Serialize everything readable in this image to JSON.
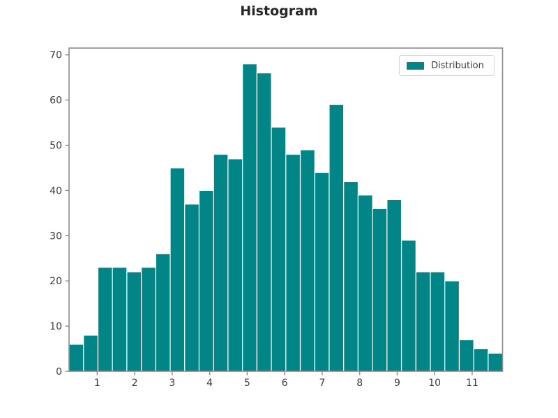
{
  "chart": {
    "title": "Histogram",
    "legend_label": "Distribution"
  },
  "chart_data": {
    "type": "bar",
    "subtype": "histogram",
    "title": "Histogram",
    "legend": [
      {
        "label": "Distribution",
        "color": "#028586"
      }
    ],
    "legend_position": "upper right",
    "bin_start": 0.25,
    "bin_width": 0.3854,
    "counts": [
      6,
      8,
      23,
      23,
      22,
      23,
      26,
      45,
      37,
      40,
      48,
      47,
      68,
      66,
      54,
      48,
      49,
      44,
      59,
      42,
      39,
      36,
      38,
      29,
      22,
      22,
      20,
      7,
      5,
      4
    ],
    "total_samples": 1000,
    "xticks": [
      1,
      2,
      3,
      4,
      5,
      6,
      7,
      8,
      9,
      10,
      11
    ],
    "yticks": [
      0,
      10,
      20,
      30,
      40,
      50,
      60,
      70
    ],
    "xlim": [
      0.25,
      11.81
    ],
    "ylim": [
      0,
      71.5
    ],
    "xlabel": "",
    "ylabel": "",
    "grid": false,
    "bar_color": "#028586",
    "bar_edge_color": "#ffffff",
    "axis_color": "#8c8c8c",
    "tick_label_color": "#3d3d3d",
    "title_color": "#262626"
  }
}
